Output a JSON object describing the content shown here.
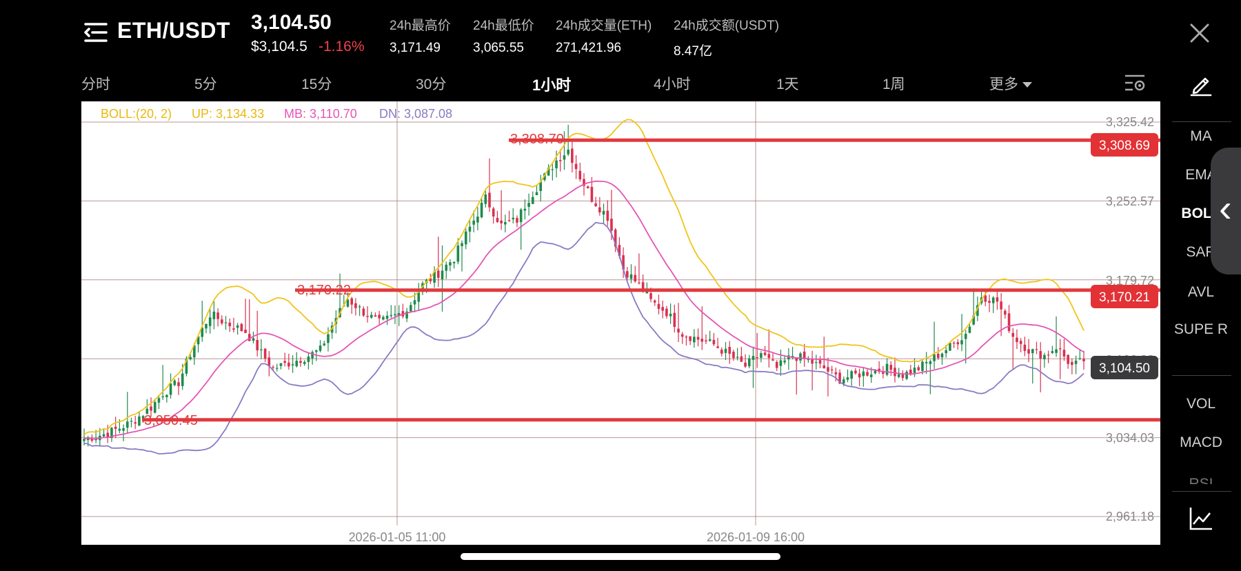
{
  "header": {
    "pair": "ETH/USDT",
    "last_price": "3,104.50",
    "usd_price": "$3,104.5",
    "change": "-1.16%",
    "stats": [
      {
        "label": "24h最高价",
        "value": "3,171.49"
      },
      {
        "label": "24h最低价",
        "value": "3,065.55"
      },
      {
        "label": "24h成交量(ETH)",
        "value": "271,421.96"
      },
      {
        "label": "24h成交额(USDT)",
        "value": "8.47亿"
      }
    ]
  },
  "tabs": [
    "分时",
    "5分",
    "15分",
    "30分",
    "1小时",
    "4小时",
    "1天",
    "1周"
  ],
  "active_tab": "1小时",
  "more_label": "更多",
  "indicators": {
    "top": [
      "MA",
      "EMA",
      "BOLL",
      "SAR",
      "AVL",
      "SUPE R"
    ],
    "active": "BOLL",
    "bottom": [
      "VOL",
      "MACD"
    ],
    "faded": "RSI"
  },
  "chart_data": {
    "type": "candlestick",
    "legend": {
      "boll": "BOLL:(20, 2)",
      "up": "UP: 3,134.33",
      "mb": "MB: 3,110.70",
      "dn": "DN: 3,087.08"
    },
    "y_ticks": [
      "3,325.42",
      "3,252.57",
      "3,179.72",
      "3,106.88",
      "3,034.03",
      "2,961.18"
    ],
    "y_tick_values": [
      3325.42,
      3252.57,
      3179.72,
      3106.88,
      3034.03,
      2961.18
    ],
    "ylim": [
      2961.18,
      3325.42
    ],
    "x_ticks": [
      "2026-01-05 11:00",
      "2026-01-09 16:00"
    ],
    "level_lines": [
      {
        "label": "3,308.70",
        "tag": "3,308.69",
        "value": 3308.69
      },
      {
        "label": "3,170.22",
        "tag": "3,170.21",
        "value": 3170.21
      },
      {
        "label": "3,050.45",
        "tag": "",
        "value": 3050.45
      }
    ],
    "current_price_tag": "3,104.50",
    "current_price": 3104.5,
    "colors": {
      "up": "#1f8a4c",
      "down": "#d9304f",
      "boll_up": "#f0c419",
      "boll_mb": "#e455b4",
      "boll_dn": "#8a79c4",
      "level": "#e03a3e",
      "grid": "#9e6b6b"
    },
    "close_path": [
      [
        0,
        3033
      ],
      [
        6,
        3038
      ],
      [
        12,
        3048
      ],
      [
        17,
        3062
      ],
      [
        20,
        3075
      ],
      [
        24,
        3085
      ],
      [
        28,
        3120
      ],
      [
        32,
        3148
      ],
      [
        36,
        3140
      ],
      [
        41,
        3132
      ],
      [
        45,
        3112
      ],
      [
        48,
        3098
      ],
      [
        52,
        3103
      ],
      [
        56,
        3108
      ],
      [
        60,
        3115
      ],
      [
        64,
        3145
      ],
      [
        67,
        3162
      ],
      [
        71,
        3150
      ],
      [
        75,
        3140
      ],
      [
        78,
        3145
      ],
      [
        82,
        3152
      ],
      [
        86,
        3175
      ],
      [
        90,
        3186
      ],
      [
        94,
        3200
      ],
      [
        98,
        3228
      ],
      [
        102,
        3255
      ],
      [
        106,
        3230
      ],
      [
        110,
        3235
      ],
      [
        113,
        3255
      ],
      [
        116,
        3270
      ],
      [
        120,
        3290
      ],
      [
        123,
        3300
      ],
      [
        126,
        3275
      ],
      [
        129,
        3255
      ],
      [
        133,
        3238
      ],
      [
        137,
        3190
      ],
      [
        141,
        3175
      ],
      [
        144,
        3160
      ],
      [
        148,
        3150
      ],
      [
        152,
        3130
      ],
      [
        156,
        3125
      ],
      [
        160,
        3120
      ],
      [
        164,
        3110
      ],
      [
        168,
        3100
      ],
      [
        172,
        3112
      ],
      [
        176,
        3098
      ],
      [
        180,
        3110
      ],
      [
        184,
        3105
      ],
      [
        188,
        3098
      ],
      [
        192,
        3088
      ],
      [
        196,
        3092
      ],
      [
        200,
        3095
      ],
      [
        204,
        3098
      ],
      [
        208,
        3092
      ],
      [
        212,
        3098
      ],
      [
        216,
        3108
      ],
      [
        220,
        3118
      ],
      [
        224,
        3130
      ],
      [
        228,
        3165
      ],
      [
        232,
        3160
      ],
      [
        236,
        3128
      ],
      [
        240,
        3115
      ],
      [
        244,
        3110
      ],
      [
        247,
        3118
      ],
      [
        251,
        3100
      ],
      [
        254,
        3105
      ]
    ]
  }
}
